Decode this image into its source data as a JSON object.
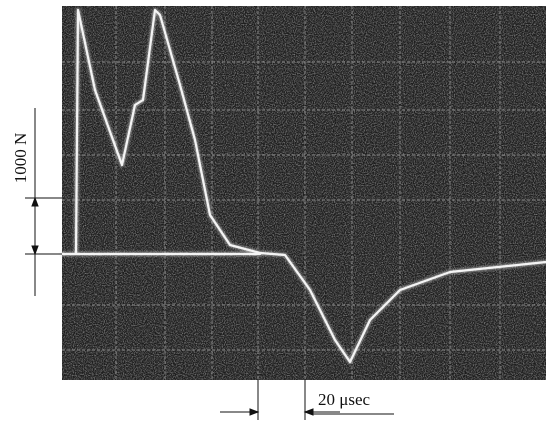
{
  "labels": {
    "force_scale": "1000 N",
    "time_scale": "20 μsec"
  }
}
